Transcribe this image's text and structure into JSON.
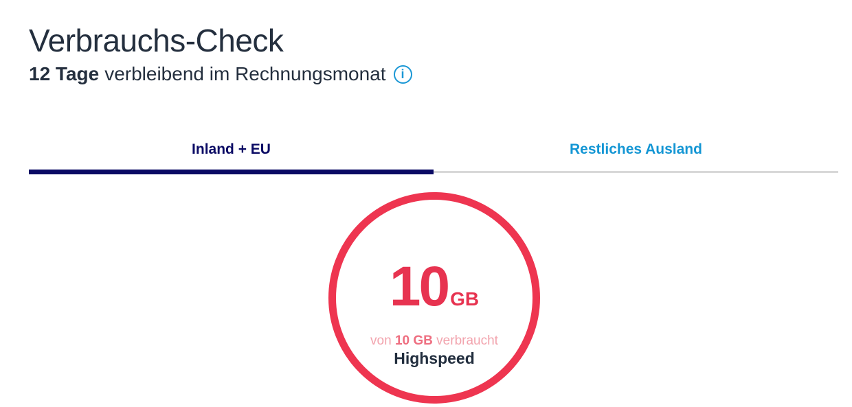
{
  "page": {
    "title": "Verbrauchs-Check",
    "billing_period": {
      "days_remaining": "12 Tage",
      "text": "verbleibend im Rechnungsmonat",
      "info_glyph": "i"
    },
    "tabs": [
      {
        "label": "Inland + EU",
        "active": true
      },
      {
        "label": "Restliches Ausland",
        "active": false
      }
    ],
    "usage": {
      "value": "10",
      "unit": "GB",
      "subline_prefix": "von ",
      "subline_amount": "10 GB",
      "subline_suffix": " verbraucht",
      "speed_label": "Highspeed",
      "progress_percent": 100
    },
    "colors": {
      "accent_red": "#ee3550",
      "navy": "#0a0a64",
      "light_blue": "#1496d4",
      "dark_text": "#242f3e",
      "pink_light": "#f2a3ad",
      "pink_mid": "#ee6e80",
      "divider_gray": "#d8d8d8"
    }
  }
}
